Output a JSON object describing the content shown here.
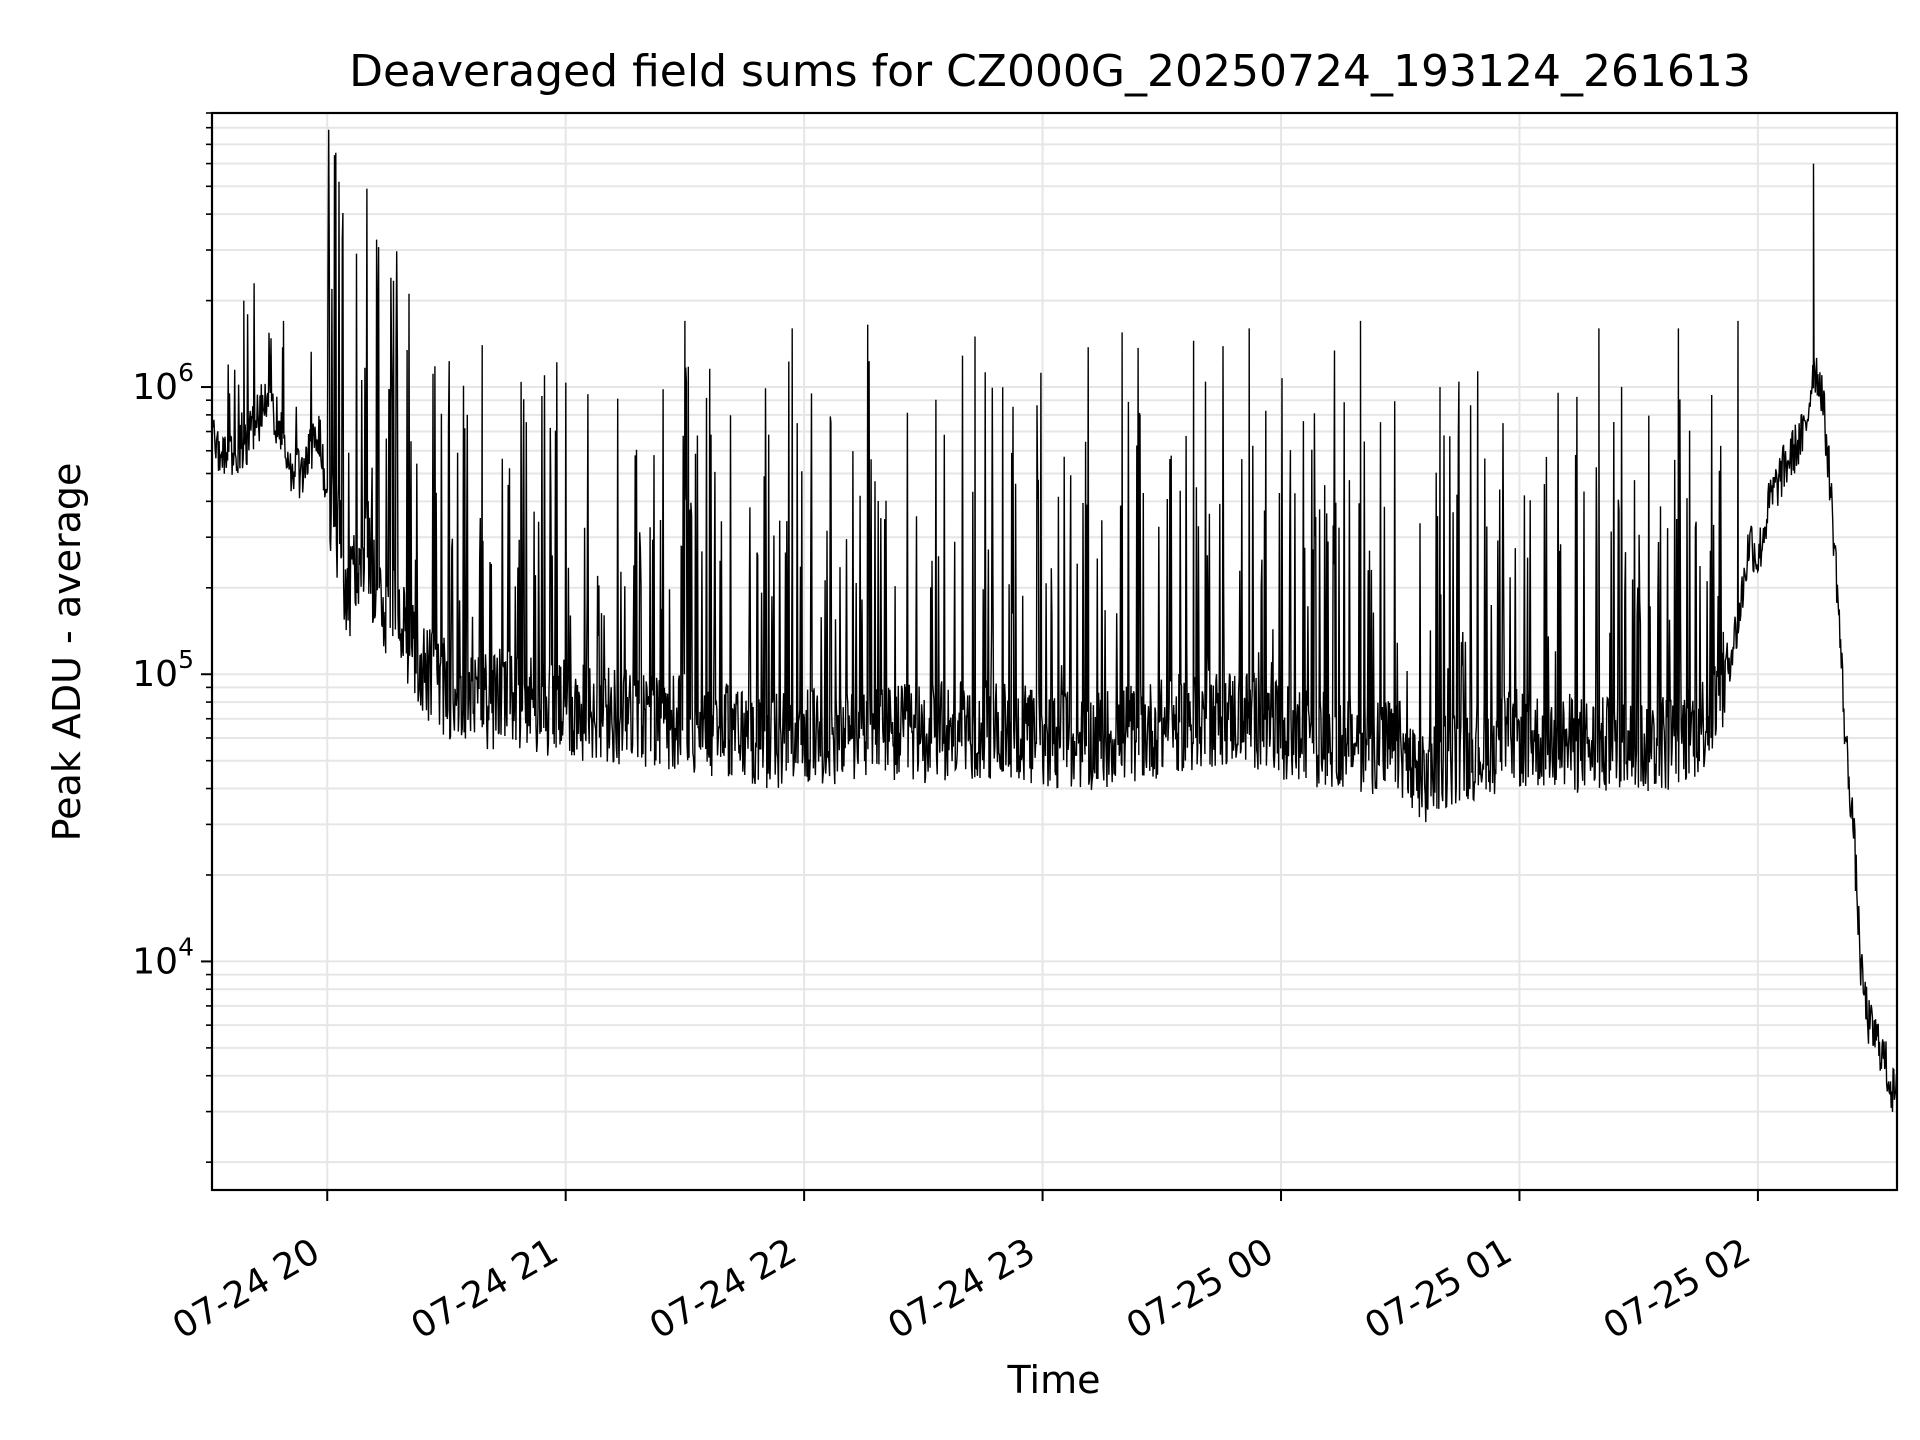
{
  "chart_data": {
    "type": "line",
    "title": "Deaveraged field sums for CZ000G_20250724_193124_261613",
    "xlabel": "Time",
    "ylabel": "Peak ADU - average",
    "yscale": "log",
    "grid": true,
    "legend": "none",
    "line_color": "#000000",
    "grid_color": "#e6e6e6",
    "xlim": [
      "2025-07-24 19:31",
      "2025-07-25 02:35"
    ],
    "ylim": [
      1600,
      9000000
    ],
    "x_ticks": [
      {
        "time": "2025-07-24 20:00",
        "label": "07-24 20"
      },
      {
        "time": "2025-07-24 21:00",
        "label": "07-24 21"
      },
      {
        "time": "2025-07-24 22:00",
        "label": "07-24 22"
      },
      {
        "time": "2025-07-24 23:00",
        "label": "07-24 23"
      },
      {
        "time": "2025-07-25 00:00",
        "label": "07-25 00"
      },
      {
        "time": "2025-07-25 01:00",
        "label": "07-25 01"
      },
      {
        "time": "2025-07-25 02:00",
        "label": "07-25 02"
      }
    ],
    "y_ticks": [
      {
        "value": 10000,
        "base": "10",
        "exp": "4"
      },
      {
        "value": 100000,
        "base": "10",
        "exp": "5"
      },
      {
        "value": 1000000,
        "base": "10",
        "exp": "6"
      }
    ],
    "series": [
      {
        "x": [
          "2025-07-24 19:31",
          "2025-07-24 19:35",
          "2025-07-24 19:38",
          "2025-07-24 19:41",
          "2025-07-24 19:43",
          "2025-07-24 19:45",
          "2025-07-24 19:48",
          "2025-07-24 19:51",
          "2025-07-24 19:54",
          "2025-07-24 19:56",
          "2025-07-24 19:58",
          "2025-07-24 20:00",
          "2025-07-24 20:03",
          "2025-07-24 20:05",
          "2025-07-24 20:08",
          "2025-07-24 20:10",
          "2025-07-24 20:12",
          "2025-07-24 20:14",
          "2025-07-24 20:17",
          "2025-07-24 20:20",
          "2025-07-24 20:25",
          "2025-07-24 20:30",
          "2025-07-24 20:35",
          "2025-07-24 20:40",
          "2025-07-24 20:45",
          "2025-07-24 20:50",
          "2025-07-24 21:00",
          "2025-07-24 21:10",
          "2025-07-24 21:20",
          "2025-07-24 21:30",
          "2025-07-24 21:40",
          "2025-07-24 21:50",
          "2025-07-24 22:00",
          "2025-07-24 22:10",
          "2025-07-24 22:20",
          "2025-07-24 22:30",
          "2025-07-24 22:40",
          "2025-07-24 22:50",
          "2025-07-24 23:00",
          "2025-07-24 23:10",
          "2025-07-24 23:20",
          "2025-07-24 23:30",
          "2025-07-24 23:40",
          "2025-07-24 23:50",
          "2025-07-25 00:00",
          "2025-07-25 00:10",
          "2025-07-25 00:20",
          "2025-07-25 00:30",
          "2025-07-25 00:35",
          "2025-07-25 00:40",
          "2025-07-25 00:50",
          "2025-07-25 01:00",
          "2025-07-25 01:10",
          "2025-07-25 01:20",
          "2025-07-25 01:30",
          "2025-07-25 01:40",
          "2025-07-25 01:45",
          "2025-07-25 01:50",
          "2025-07-25 01:55",
          "2025-07-25 01:58",
          "2025-07-25 02:00",
          "2025-07-25 02:03",
          "2025-07-25 02:06",
          "2025-07-25 02:09",
          "2025-07-25 02:12",
          "2025-07-25 02:14",
          "2025-07-25 02:16",
          "2025-07-25 02:18",
          "2025-07-25 02:20",
          "2025-07-25 02:22",
          "2025-07-25 02:24",
          "2025-07-25 02:26",
          "2025-07-25 02:28",
          "2025-07-25 02:31",
          "2025-07-25 02:34"
        ],
        "y": [
          650000,
          550000,
          600000,
          700000,
          800000,
          1000000,
          700000,
          500000,
          500000,
          600000,
          700000,
          400000,
          300000,
          180000,
          250000,
          300000,
          200000,
          150000,
          200000,
          140000,
          100000,
          90000,
          80000,
          80000,
          85000,
          80000,
          75000,
          72000,
          70000,
          68000,
          65000,
          60000,
          60000,
          60000,
          62000,
          62000,
          65000,
          63000,
          60000,
          58000,
          62000,
          65000,
          70000,
          72000,
          62000,
          60000,
          58000,
          55000,
          40000,
          50000,
          55000,
          60000,
          58000,
          56000,
          56000,
          60000,
          65000,
          80000,
          150000,
          300000,
          250000,
          400000,
          500000,
          600000,
          700000,
          1200000,
          1000000,
          500000,
          200000,
          60000,
          30000,
          9000,
          6000,
          5000,
          3500
        ],
        "spike_times": [
          "2025-07-24 19:39",
          "2025-07-24 19:49",
          "2025-07-24 20:16",
          "2025-07-24 20:39",
          "2025-07-24 21:30",
          "2025-07-24 21:57",
          "2025-07-24 22:16",
          "2025-07-24 22:43",
          "2025-07-24 23:20",
          "2025-07-24 23:38",
          "2025-07-24 23:52",
          "2025-07-25 00:20",
          "2025-07-25 00:40",
          "2025-07-25 01:20",
          "2025-07-25 01:40",
          "2025-07-25 01:55",
          "2025-07-25 02:14"
        ],
        "spike_values": [
          2000000,
          1700000,
          1950000,
          1400000,
          1700000,
          1600000,
          1650000,
          1500000,
          1550000,
          1450000,
          1600000,
          1700000,
          1000000,
          1600000,
          1600000,
          1700000,
          6000000
        ]
      }
    ]
  }
}
